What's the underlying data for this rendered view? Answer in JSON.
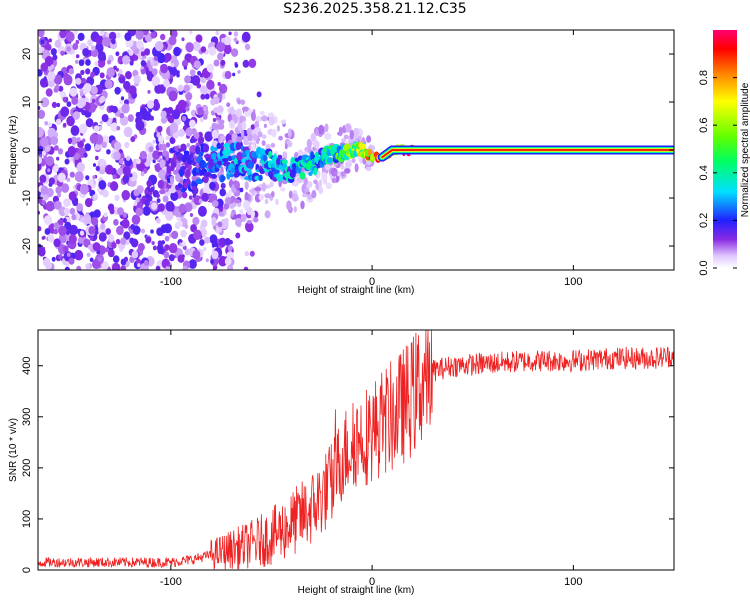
{
  "title": "S236.2025.358.21.12.C35",
  "chart_data": [
    {
      "type": "heatmap",
      "title": "S236.2025.358.21.12.C35",
      "xlabel": "Height of straight line (km)",
      "ylabel": "Frequency (Hz)",
      "xlim": [
        -166,
        150
      ],
      "ylim": [
        -25,
        25
      ],
      "xticks": [
        -100,
        0,
        100
      ],
      "yticks": [
        -20,
        -10,
        0,
        10,
        20
      ],
      "colorbar": {
        "label": "Normalized spectral amplitude",
        "range": [
          0,
          1
        ],
        "ticks": [
          0.0,
          0.2,
          0.4,
          0.6,
          0.8
        ]
      },
      "ridge": {
        "description_x_km": [
          -105,
          -90,
          -80,
          -70,
          -60,
          -50,
          -40,
          -30,
          -20,
          -10,
          -5,
          0,
          5,
          10,
          20,
          150
        ],
        "frequency_hz": [
          -4,
          -4,
          -3,
          -2,
          -3,
          -3,
          -4,
          -3,
          -1,
          0,
          0,
          -1.5,
          -1.5,
          0,
          0,
          0
        ],
        "amplitude": [
          0.15,
          0.2,
          0.25,
          0.3,
          0.3,
          0.35,
          0.35,
          0.4,
          0.45,
          0.6,
          0.7,
          0.8,
          0.85,
          0.95,
          0.95,
          0.95
        ]
      },
      "noise_region_km": [
        -166,
        -80
      ]
    },
    {
      "type": "line",
      "xlabel": "Height of straight line (km)",
      "ylabel": "SNR (10 * v/v)",
      "xlim": [
        -166,
        150
      ],
      "ylim": [
        0,
        470
      ],
      "xticks": [
        -100,
        0,
        100
      ],
      "yticks": [
        0,
        100,
        200,
        300,
        400
      ],
      "color": "#ee2222",
      "series": [
        {
          "name": "SNR",
          "x": [
            -166,
            -140,
            -120,
            -100,
            -90,
            -80,
            -70,
            -60,
            -50,
            -40,
            -30,
            -20,
            -15,
            -10,
            -5,
            0,
            5,
            10,
            15,
            20,
            25,
            30,
            40,
            60,
            80,
            100,
            120,
            140,
            150
          ],
          "y": [
            15,
            15,
            15,
            15,
            20,
            30,
            40,
            50,
            65,
            90,
            120,
            170,
            220,
            250,
            260,
            270,
            290,
            300,
            320,
            340,
            370,
            390,
            400,
            405,
            410,
            410,
            415,
            415,
            420
          ]
        }
      ]
    }
  ]
}
